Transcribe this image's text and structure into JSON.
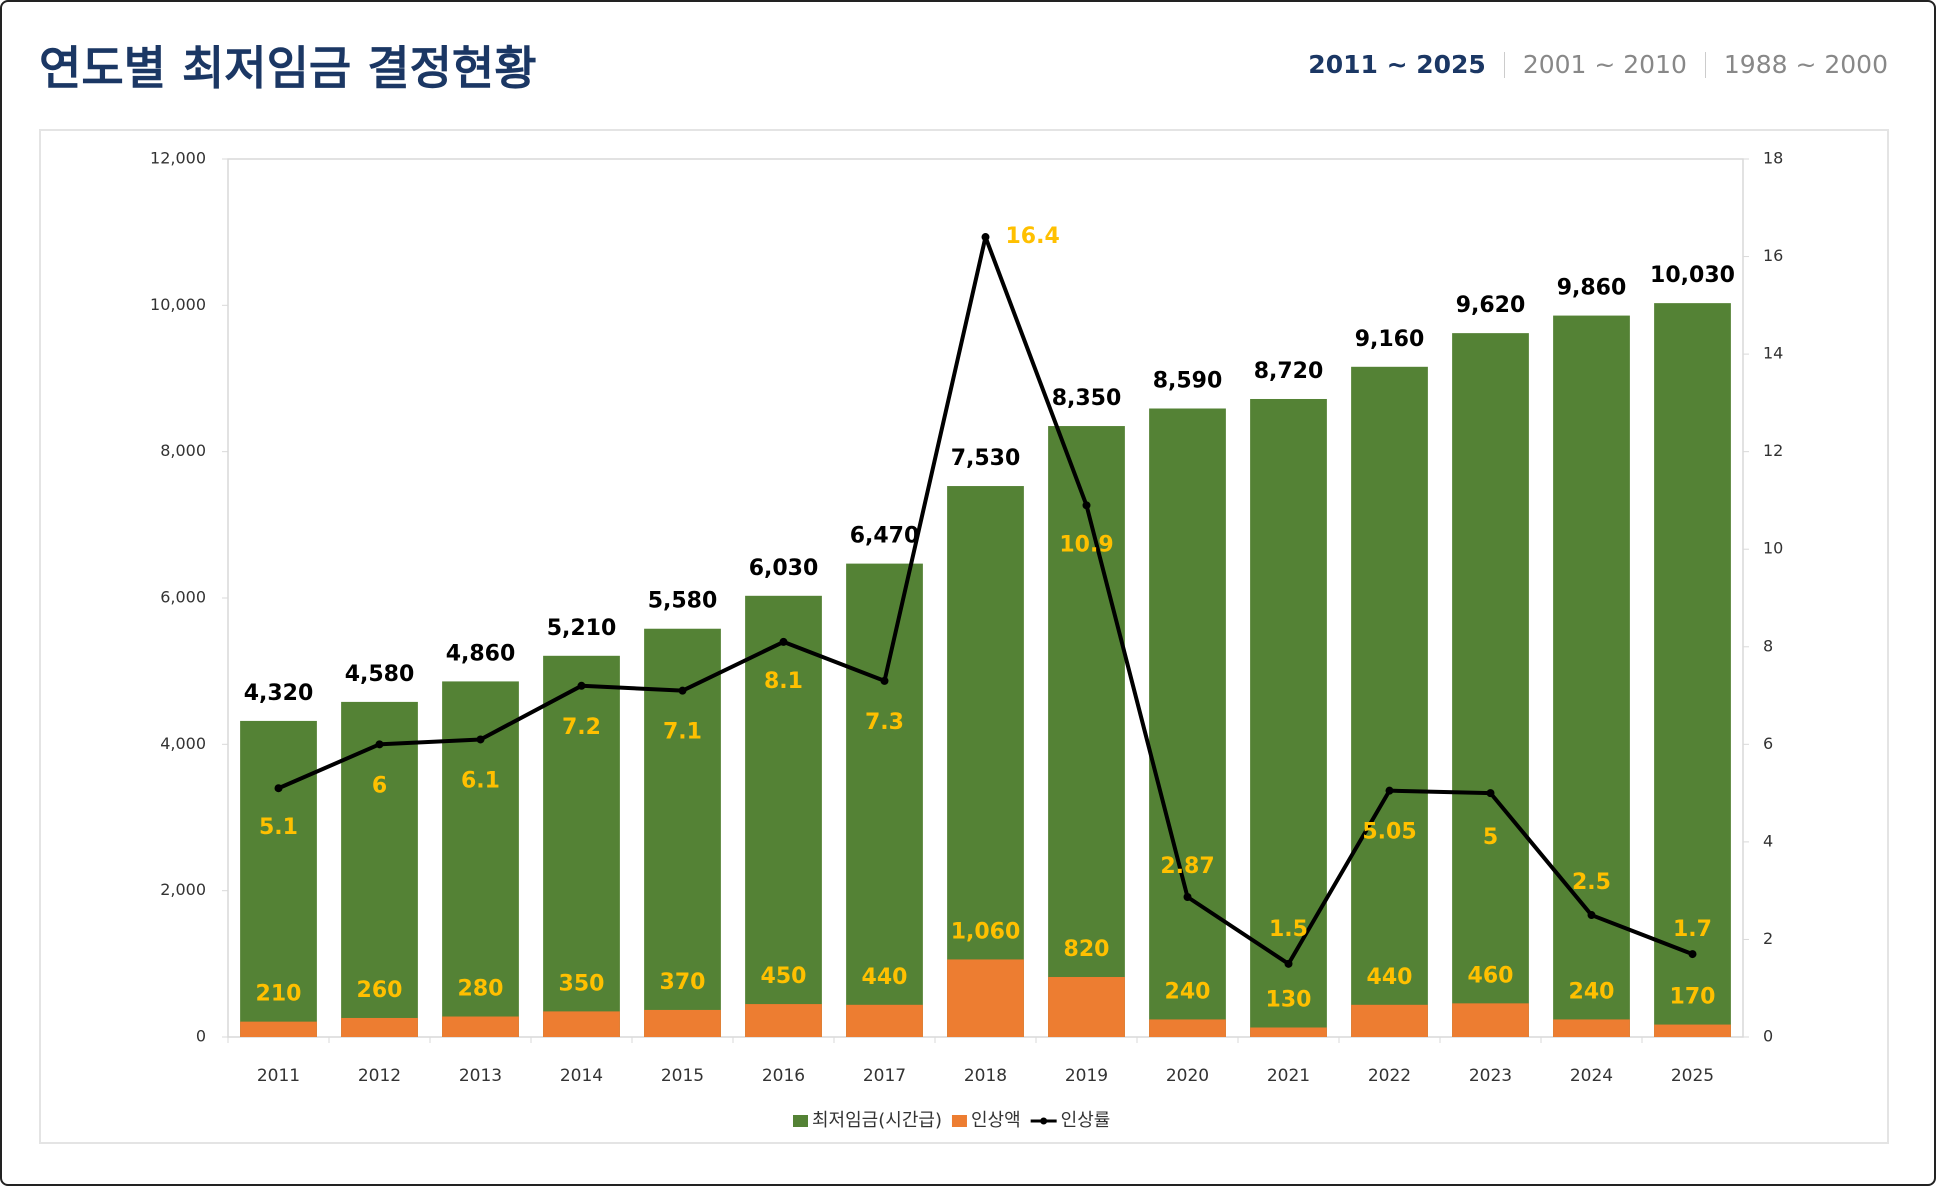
{
  "header": {
    "title": "연도별 최저임금 결정현황",
    "tabs": [
      "2011 ~ 2025",
      "2001 ~ 2010",
      "1988 ~ 2000"
    ],
    "active_tab": 0
  },
  "chart_data": {
    "type": "bar",
    "categories": [
      "2011",
      "2012",
      "2013",
      "2014",
      "2015",
      "2016",
      "2017",
      "2018",
      "2019",
      "2020",
      "2021",
      "2022",
      "2023",
      "2024",
      "2025"
    ],
    "series": [
      {
        "name": "최저임금(시간급)",
        "type": "bar",
        "color": "#548235",
        "label_color": "#000000",
        "values": [
          4320,
          4580,
          4860,
          5210,
          5580,
          6030,
          6470,
          7530,
          8350,
          8590,
          8720,
          9160,
          9620,
          9860,
          10030
        ],
        "value_labels": [
          "4,320",
          "4,580",
          "4,860",
          "5,210",
          "5,580",
          "6,030",
          "6,470",
          "7,530",
          "8,350",
          "8,590",
          "8,720",
          "9,160",
          "9,620",
          "9,860",
          "10,030"
        ]
      },
      {
        "name": "인상액",
        "type": "bar",
        "color": "#ed7d31",
        "label_color": "#ffc000",
        "values": [
          210,
          260,
          280,
          350,
          370,
          450,
          440,
          1060,
          820,
          240,
          130,
          440,
          460,
          240,
          170
        ],
        "value_labels": [
          "210",
          "260",
          "280",
          "350",
          "370",
          "450",
          "440",
          "1,060",
          "820",
          "240",
          "130",
          "440",
          "460",
          "240",
          "170"
        ]
      },
      {
        "name": "인상률",
        "type": "line",
        "axis": "y2",
        "color": "#000000",
        "label_color": "#ffc000",
        "values": [
          5.1,
          6,
          6.1,
          7.2,
          7.1,
          8.1,
          7.3,
          16.4,
          10.9,
          2.87,
          1.5,
          5.05,
          5,
          2.5,
          1.7
        ]
      }
    ],
    "ylim": [
      0,
      12000
    ],
    "yticks": [
      0,
      {
        "value": 2000,
        "label": "2,000"
      },
      {
        "value": 4000,
        "label": "4,000"
      },
      {
        "value": 6000,
        "label": "6,000"
      },
      {
        "value": 8000,
        "label": "8,000"
      },
      {
        "value": 10000,
        "label": "10,000"
      },
      {
        "value": 12000,
        "label": "12,000"
      }
    ],
    "y2lim": [
      0,
      18
    ],
    "y2ticks": [
      0,
      2,
      4,
      6,
      8,
      10,
      12,
      14,
      16,
      18
    ],
    "legend": "bottom"
  }
}
